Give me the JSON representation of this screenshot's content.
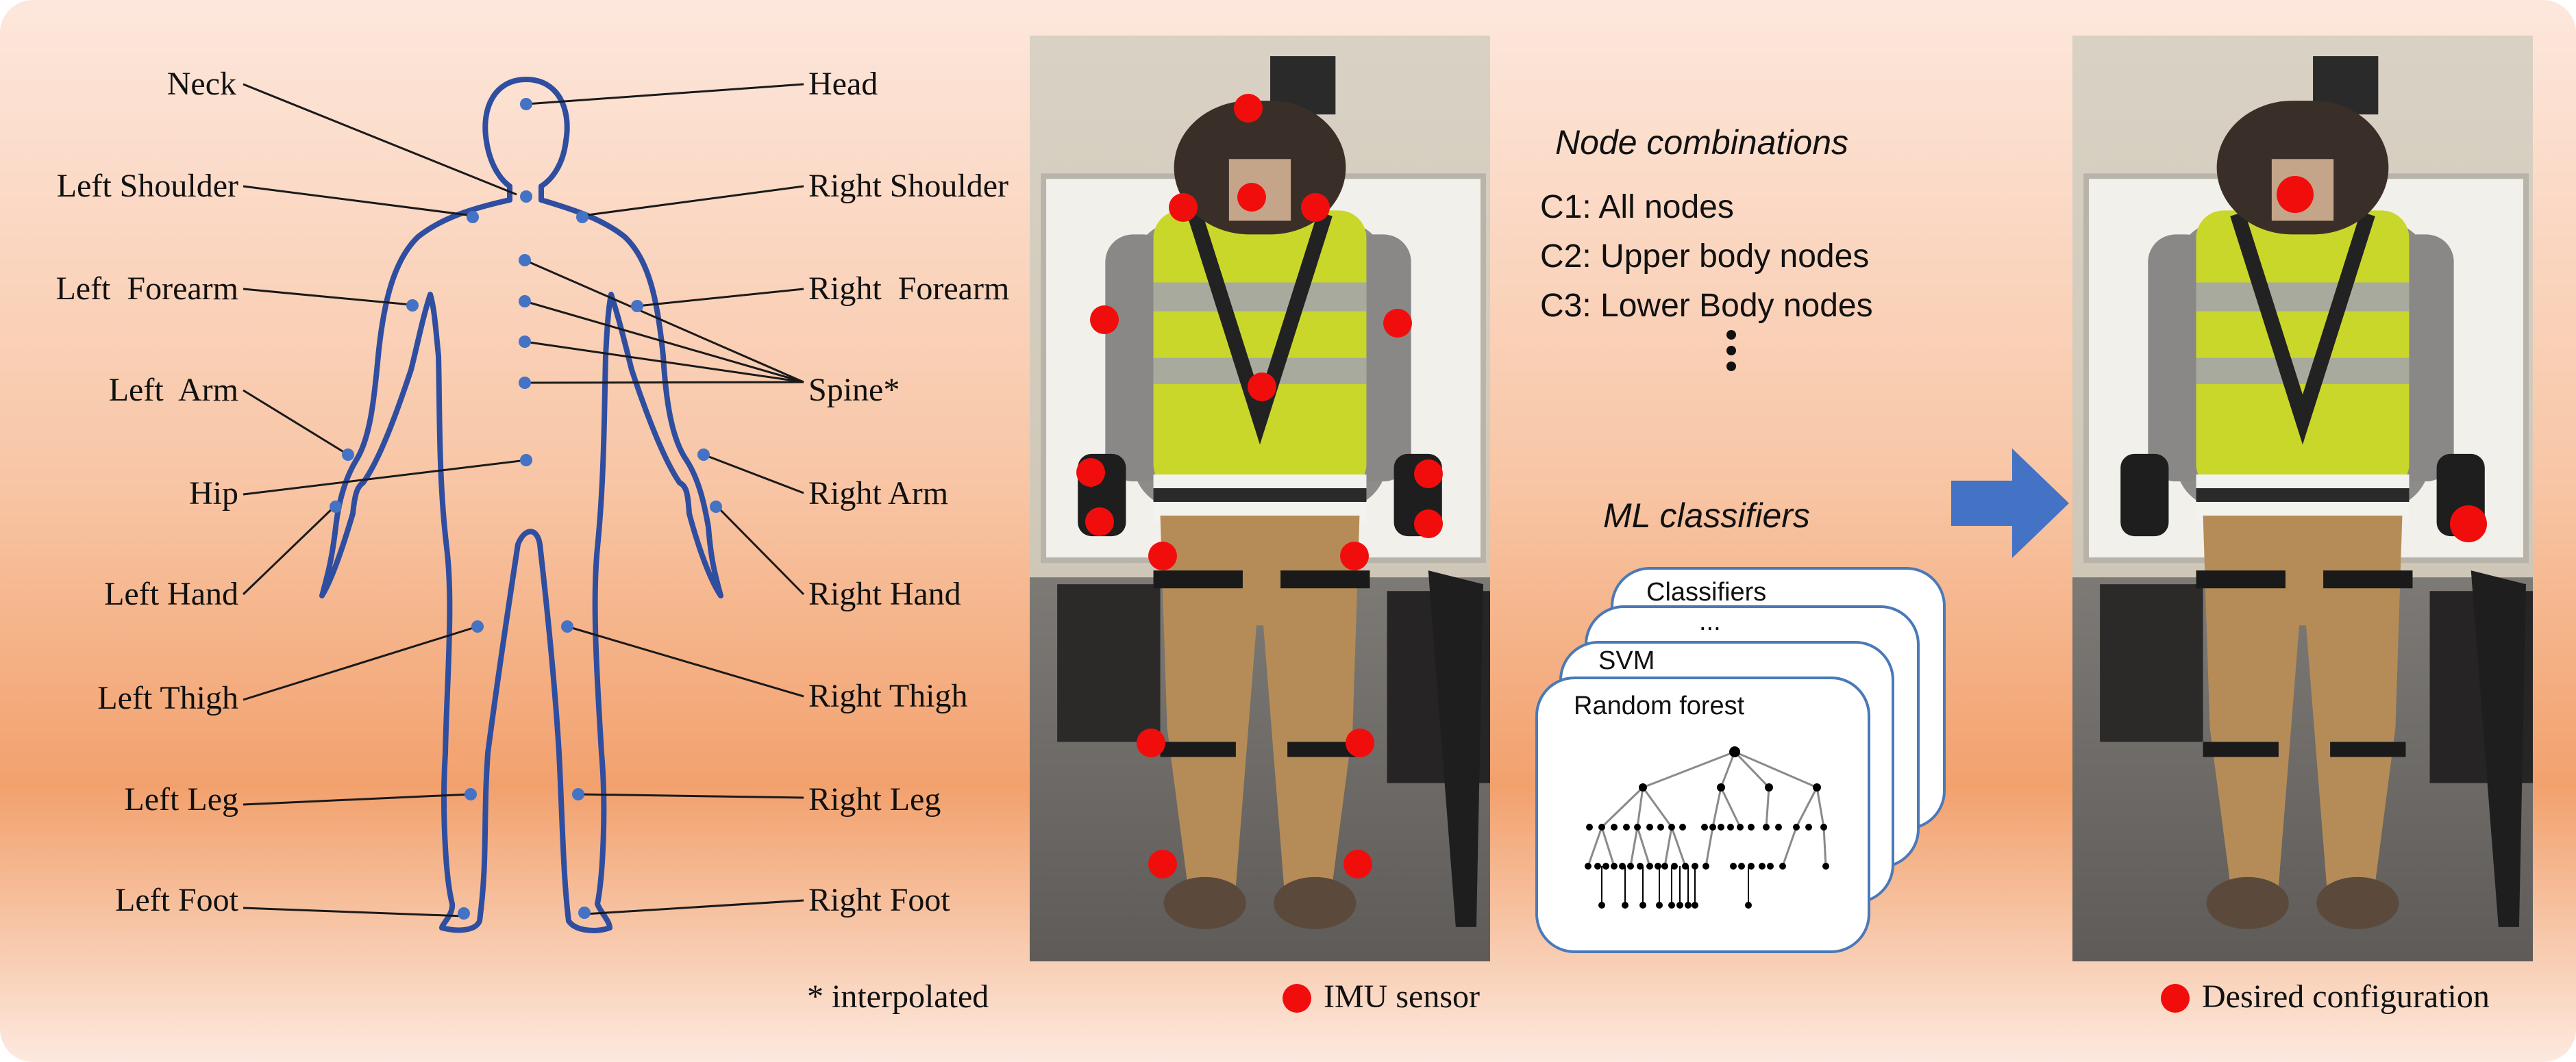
{
  "body_map": {
    "left_labels": [
      "Neck",
      "Left Shoulder",
      "Left  Forearm",
      "Left  Arm",
      "Hip",
      "Left Hand",
      "Left Thigh",
      "Left Leg",
      "Left Foot"
    ],
    "right_labels": [
      "Head",
      "Right Shoulder",
      "Right  Forearm",
      "Spine*",
      "Right Arm",
      "Right Hand",
      "Right Thigh",
      "Right Leg",
      "Right Foot"
    ],
    "footnote": "* interpolated"
  },
  "photo_left": {
    "legend": "IMU sensor"
  },
  "photo_right": {
    "legend": "Desired configuration"
  },
  "middle": {
    "combos_title": "Node combinations",
    "combos": [
      "C1: All nodes",
      "C2: Upper body nodes",
      "C3: Lower Body nodes"
    ],
    "ellipsis": "⋮",
    "classifiers_title": "ML classifiers",
    "cards": [
      "Classifiers",
      "...",
      "SVM",
      "Random forest"
    ]
  },
  "colors": {
    "imu_dot": "#f20d0d",
    "body_outline": "#2f4ea0",
    "body_dot": "#4472c4",
    "arrow": "#4472c4",
    "card_border": "#4a79b8"
  }
}
